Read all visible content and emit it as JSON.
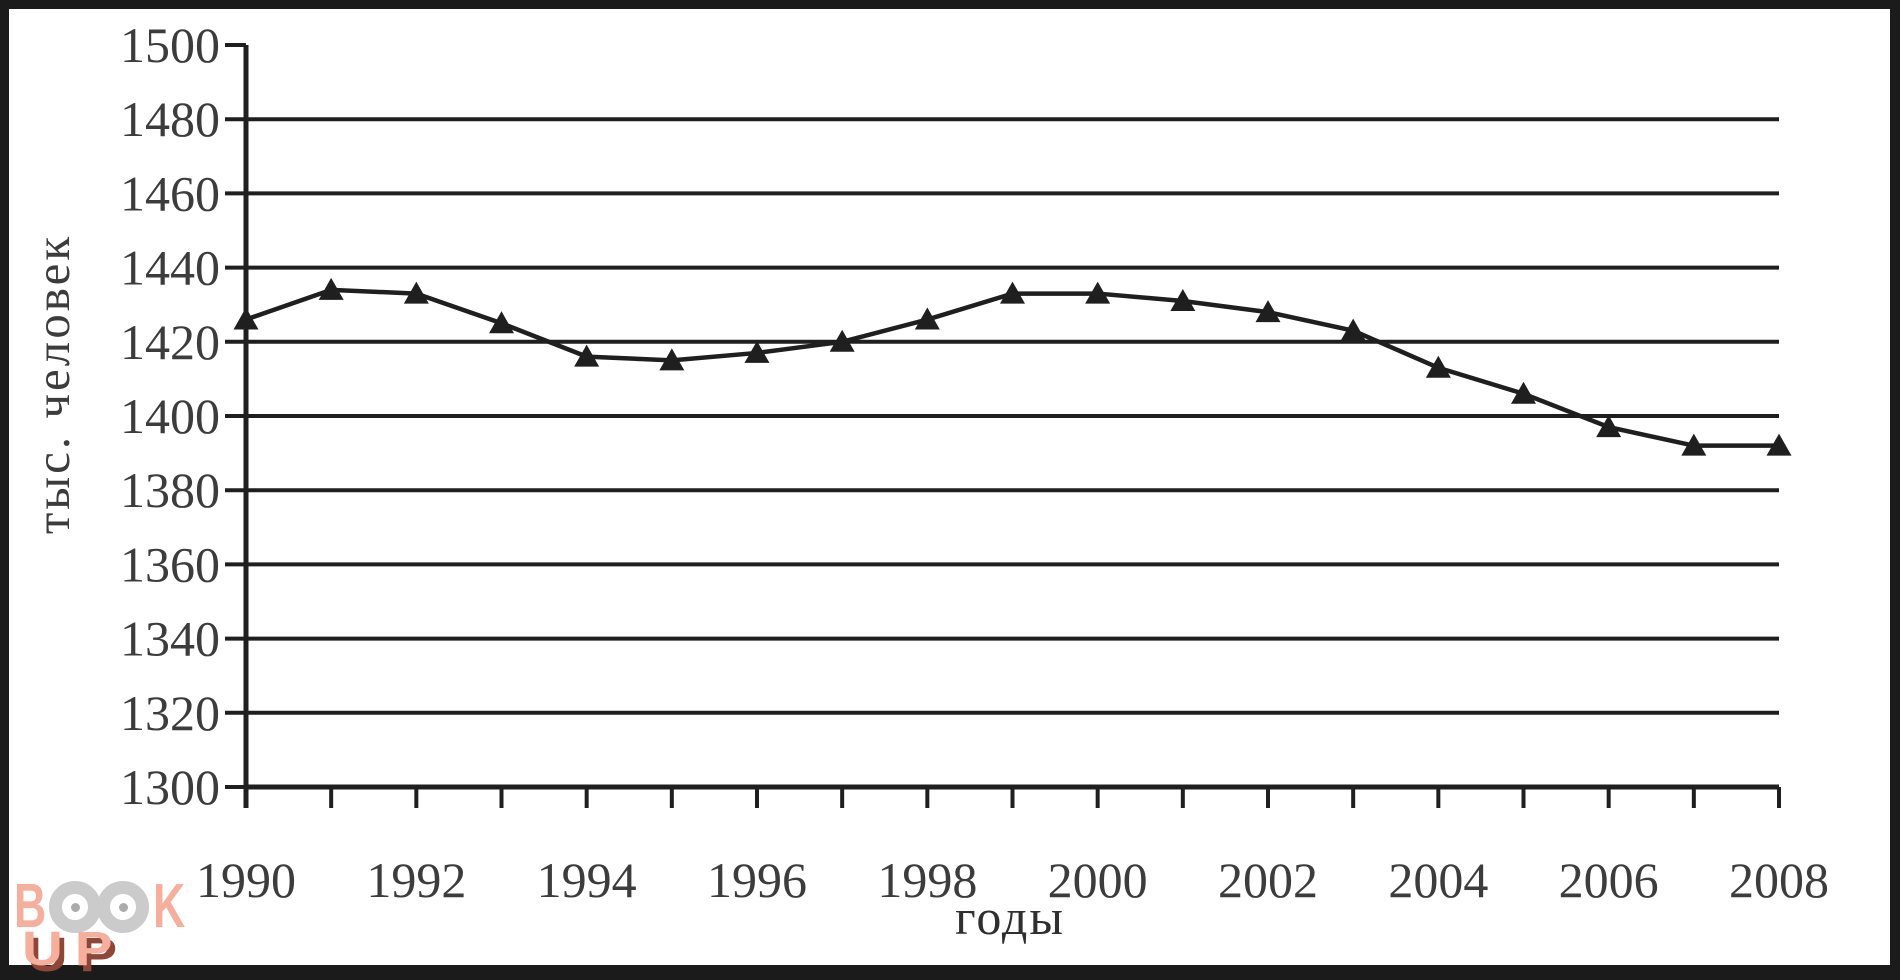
{
  "chart_data": {
    "type": "line",
    "title": "",
    "xlabel": "годы",
    "ylabel": "тыс. человек",
    "x": [
      1990,
      1991,
      1992,
      1993,
      1994,
      1995,
      1996,
      1997,
      1998,
      1999,
      2000,
      2001,
      2002,
      2003,
      2004,
      2005,
      2006,
      2007,
      2008
    ],
    "values": [
      1426,
      1434,
      1433,
      1425,
      1416,
      1415,
      1417,
      1420,
      1426,
      1433,
      1433,
      1431,
      1428,
      1423,
      1413,
      1406,
      1397,
      1392,
      1392
    ],
    "ylim": [
      1300,
      1500
    ],
    "ytick_step": 20,
    "ytick_labels": [
      "1300",
      "1320",
      "1340",
      "1360",
      "1380",
      "1400",
      "1420",
      "1440",
      "1460",
      "1480",
      "1500"
    ],
    "xtick_labels": [
      "1990",
      "1992",
      "1994",
      "1996",
      "1998",
      "2000",
      "2002",
      "2004",
      "2006",
      "2008"
    ],
    "xtick_label_every": 2,
    "grid": true,
    "legend": false,
    "marker": "triangle",
    "line_color": "#1f1f1f",
    "tick_text_color": "#3c3c3c"
  },
  "watermark": {
    "b": "B",
    "k": "K",
    "up": "UP",
    "salmon": "#f6ae9d",
    "ring_gray": "#cbcbcb",
    "shadow": "#8e4636"
  }
}
